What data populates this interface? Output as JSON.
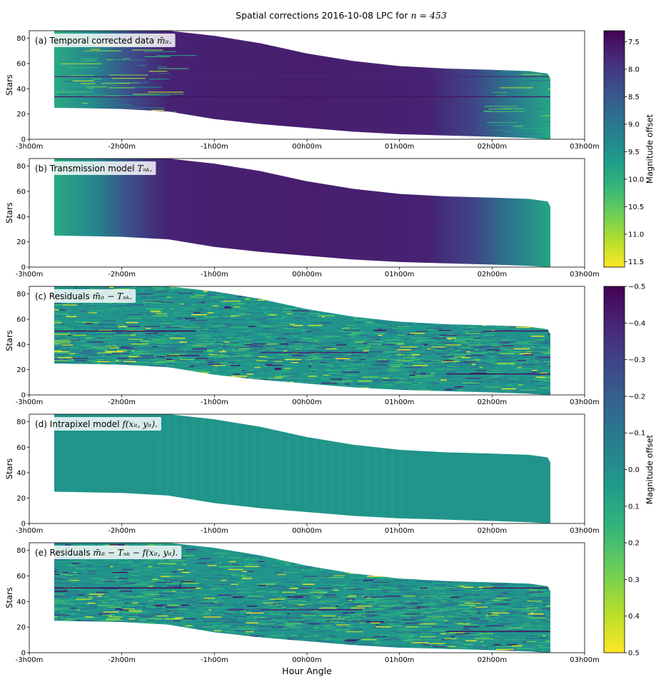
{
  "figure": {
    "title_prefix": "Spatial corrections 2016-10-08 LPC for ",
    "title_math": "n = 453"
  },
  "xaxis": {
    "label": "Hour Angle",
    "ticks": [
      "-3h00m",
      "-2h00m",
      "-1h00m",
      "00h00m",
      "01h00m",
      "02h00m",
      "03h00m"
    ]
  },
  "colors": {
    "viridis": [
      "#440154",
      "#482878",
      "#3e4989",
      "#31688e",
      "#26828e",
      "#1f9e89",
      "#35b779",
      "#6ece58",
      "#b5de2b",
      "#fde725"
    ],
    "background": "#ffffff"
  },
  "colorbars": [
    {
      "label": "Magnitude offset",
      "range": [
        7.3,
        11.6
      ],
      "reversed": true,
      "ticks": [
        "7.5",
        "8.0",
        "8.5",
        "9.0",
        "9.5",
        "10.0",
        "10.5",
        "11.0",
        "11.5"
      ]
    },
    {
      "label": "Magnitude offset",
      "range": [
        -0.5,
        0.5
      ],
      "reversed": true,
      "ticks": [
        "−0.5",
        "−0.4",
        "−0.3",
        "−0.2",
        "−0.1",
        "0.0",
        "0.1",
        "0.2",
        "0.3",
        "0.4",
        "0.5"
      ]
    }
  ],
  "chart_data": [
    {
      "type": "heatmap",
      "panel": "(a)",
      "label_text": "(a) Temporal corrected data ",
      "label_math": "m̄ᵢₜ.",
      "xlabel": "",
      "ylabel": "Stars",
      "xlim_hours": [
        -3,
        3
      ],
      "ylim": [
        0,
        86
      ],
      "yticks": [
        "0",
        "20",
        "40",
        "60",
        "80"
      ],
      "envelope": {
        "hours": [
          -2.73,
          -2.0,
          -1.5,
          -1.0,
          -0.5,
          0.0,
          0.5,
          1.0,
          1.5,
          2.0,
          2.4,
          2.6,
          2.63
        ],
        "top": [
          86,
          86,
          86,
          82,
          76,
          68,
          62,
          58,
          56,
          55,
          54,
          52,
          48
        ],
        "bottom": [
          25,
          24,
          22,
          16,
          12,
          9,
          6,
          4,
          3,
          2,
          1,
          0,
          0
        ]
      },
      "colorbar_index": 0
    },
    {
      "type": "heatmap",
      "panel": "(b)",
      "label_text": "(b) Transmission model ",
      "label_math": "Tₙₖ.",
      "xlabel": "",
      "ylabel": "Stars",
      "xlim_hours": [
        -3,
        3
      ],
      "ylim": [
        0,
        86
      ],
      "yticks": [
        "0",
        "20",
        "40",
        "60",
        "80"
      ],
      "colorbar_index": 0
    },
    {
      "type": "heatmap",
      "panel": "(c)",
      "label_text": "(c) Residuals ",
      "label_math": "m̄ᵢₜ − Tₙₖ.",
      "xlabel": "",
      "ylabel": "Stars",
      "xlim_hours": [
        -3,
        3
      ],
      "ylim": [
        0,
        86
      ],
      "yticks": [
        "0",
        "20",
        "40",
        "60",
        "80"
      ],
      "colorbar_index": 1
    },
    {
      "type": "heatmap",
      "panel": "(d)",
      "label_text": "(d) Intrapixel model ",
      "label_math": "f(xᵢₜ, yᵢₜ).",
      "xlabel": "",
      "ylabel": "Stars",
      "xlim_hours": [
        -3,
        3
      ],
      "ylim": [
        0,
        86
      ],
      "yticks": [
        "0",
        "20",
        "40",
        "60",
        "80"
      ],
      "colorbar_index": 1
    },
    {
      "type": "heatmap",
      "panel": "(e)",
      "label_text": "(e) Residuals ",
      "label_math": "m̄ᵢₜ − Tₙₖ − f(xᵢₜ, yᵢₜ).",
      "xlabel": "Hour Angle",
      "ylabel": "Stars",
      "xlim_hours": [
        -3,
        3
      ],
      "ylim": [
        0,
        86
      ],
      "yticks": [
        "0",
        "20",
        "40",
        "60",
        "80"
      ],
      "colorbar_index": 1
    }
  ]
}
